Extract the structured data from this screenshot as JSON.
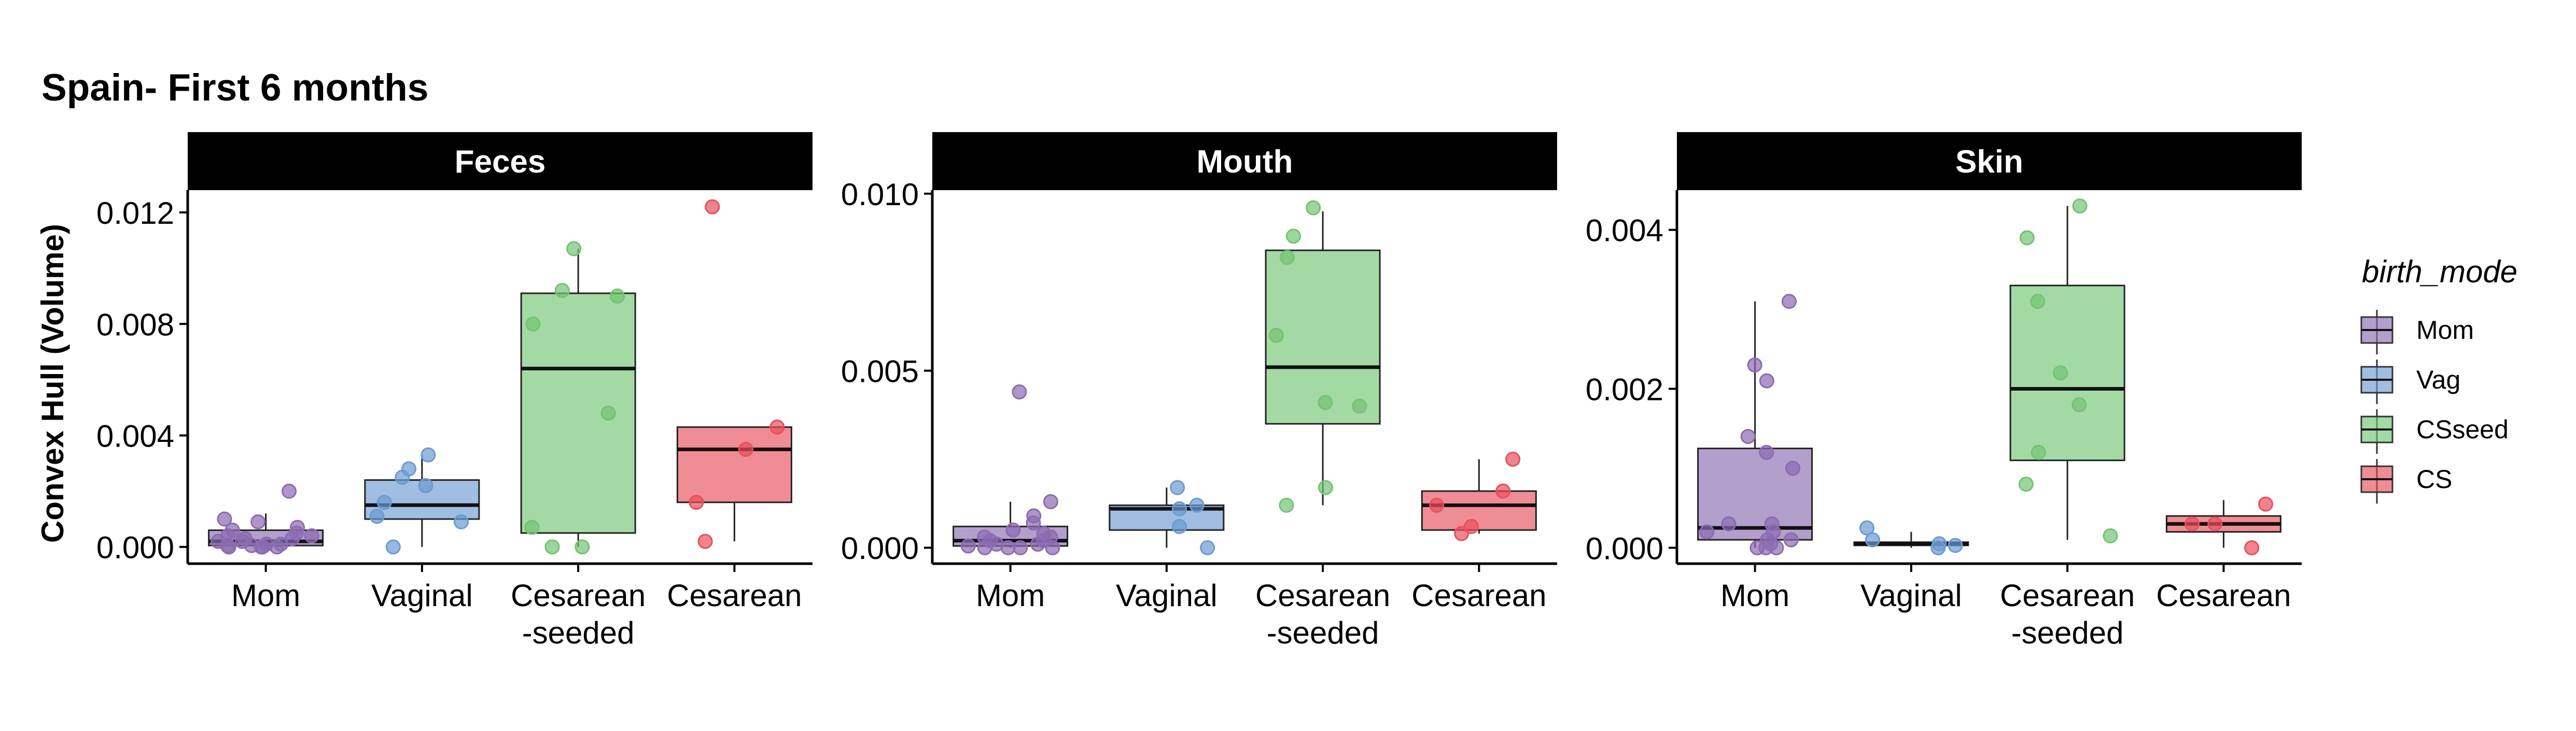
{
  "title": "Spain- First 6 months",
  "ylabel": "Convex Hull (Volume)",
  "legend": {
    "title": "birth_mode",
    "placement": "right",
    "items": [
      {
        "label": "Mom",
        "color": "#8b6bb1"
      },
      {
        "label": "Vag",
        "color": "#6b9bd1"
      },
      {
        "label": "CSseed",
        "color": "#72c472"
      },
      {
        "label": "CS",
        "color": "#e8505b"
      }
    ]
  },
  "x_tick_labels": [
    [
      "Mom"
    ],
    [
      "Vaginal"
    ],
    [
      "Cesarean",
      "-seeded"
    ],
    [
      "Cesarean"
    ]
  ],
  "chart_data": {
    "type": "box",
    "panels": [
      {
        "strip": "Feces",
        "ylim": [
          -0.0006,
          0.0128
        ],
        "yticks": [
          0.0,
          0.004,
          0.008,
          0.012
        ],
        "yticklabels": [
          "0.000",
          "0.004",
          "0.008",
          "0.012"
        ],
        "boxes": [
          {
            "group": "Mom",
            "q1": 5e-05,
            "median": 0.0002,
            "q3": 0.0006,
            "whisker_low": 0.0,
            "whisker_high": 0.0012,
            "points": [
              0.002,
              0.001,
              0.0009,
              0.0007,
              0.0006,
              0.0005,
              0.0004,
              0.0004,
              0.0003,
              0.0003,
              0.0002,
              0.0002,
              0.0001,
              0.0001,
              5e-05,
              5e-05,
              0.0,
              0.0,
              0.0,
              0.0
            ]
          },
          {
            "group": "Vaginal",
            "q1": 0.001,
            "median": 0.0015,
            "q3": 0.0024,
            "whisker_low": 0.0,
            "whisker_high": 0.0033,
            "points": [
              0.0033,
              0.0028,
              0.0025,
              0.0022,
              0.0016,
              0.0011,
              0.0009,
              0.0
            ]
          },
          {
            "group": "Cesarean-seeded",
            "q1": 0.0005,
            "median": 0.0064,
            "q3": 0.0091,
            "whisker_low": 0.0,
            "whisker_high": 0.0107,
            "points": [
              0.0107,
              0.0092,
              0.009,
              0.008,
              0.0048,
              0.0007,
              0.0,
              0.0
            ]
          },
          {
            "group": "Cesarean",
            "q1": 0.0016,
            "median": 0.0035,
            "q3": 0.0043,
            "whisker_low": 0.0002,
            "whisker_high": 0.0043,
            "points": [
              0.0122,
              0.0043,
              0.0035,
              0.0016,
              0.0002
            ]
          }
        ]
      },
      {
        "strip": "Mouth",
        "ylim": [
          -0.00045,
          0.0101
        ],
        "yticks": [
          0.0,
          0.005,
          0.01
        ],
        "yticklabels": [
          "0.000",
          "0.005",
          "0.010"
        ],
        "boxes": [
          {
            "group": "Mom",
            "q1": 5e-05,
            "median": 0.0002,
            "q3": 0.0006,
            "whisker_low": 0.0,
            "whisker_high": 0.0013,
            "points": [
              0.0044,
              0.0013,
              0.0009,
              0.0007,
              0.0005,
              0.0004,
              0.0003,
              0.0003,
              0.0002,
              0.0002,
              0.0001,
              0.0001,
              5e-05,
              0.0,
              0.0,
              0.0,
              0.0
            ]
          },
          {
            "group": "Vaginal",
            "q1": 0.0005,
            "median": 0.0011,
            "q3": 0.0012,
            "whisker_low": 0.0,
            "whisker_high": 0.0017,
            "points": [
              0.0017,
              0.0012,
              0.0011,
              0.0006,
              0.0
            ]
          },
          {
            "group": "Cesarean-seeded",
            "q1": 0.0035,
            "median": 0.0051,
            "q3": 0.0084,
            "whisker_low": 0.0012,
            "whisker_high": 0.0095,
            "points": [
              0.0096,
              0.0088,
              0.0082,
              0.006,
              0.0041,
              0.004,
              0.0017,
              0.0012
            ]
          },
          {
            "group": "Cesarean",
            "q1": 0.0005,
            "median": 0.0012,
            "q3": 0.0016,
            "whisker_low": 0.0004,
            "whisker_high": 0.0025,
            "points": [
              0.0025,
              0.0016,
              0.0012,
              0.0006,
              0.0004
            ]
          }
        ]
      },
      {
        "strip": "Skin",
        "ylim": [
          -0.0002,
          0.0045
        ],
        "yticks": [
          0.0,
          0.002,
          0.004
        ],
        "yticklabels": [
          "0.000",
          "0.002",
          "0.004"
        ],
        "boxes": [
          {
            "group": "Mom",
            "q1": 0.0001,
            "median": 0.00025,
            "q3": 0.00125,
            "whisker_low": 0.0,
            "whisker_high": 0.0031,
            "points": [
              0.0031,
              0.0023,
              0.0021,
              0.0014,
              0.0012,
              0.001,
              0.0003,
              0.0003,
              0.0002,
              0.0002,
              0.0001,
              0.0001,
              5e-05,
              0.0,
              0.0,
              0.0
            ]
          },
          {
            "group": "Vaginal",
            "q1": 3e-05,
            "median": 5e-05,
            "q3": 7e-05,
            "whisker_low": 0.0,
            "whisker_high": 0.0002,
            "points": [
              0.00025,
              0.0001,
              5e-05,
              3e-05,
              0.0
            ]
          },
          {
            "group": "Cesarean-seeded",
            "q1": 0.0011,
            "median": 0.002,
            "q3": 0.0033,
            "whisker_low": 0.0001,
            "whisker_high": 0.0043,
            "points": [
              0.0043,
              0.0039,
              0.0031,
              0.0022,
              0.0018,
              0.0012,
              0.0008,
              0.00015
            ]
          },
          {
            "group": "Cesarean",
            "q1": 0.0002,
            "median": 0.0003,
            "q3": 0.0004,
            "whisker_low": 0.0,
            "whisker_high": 0.0006,
            "points": [
              0.00055,
              0.0003,
              0.0003,
              0.0
            ]
          }
        ]
      }
    ]
  }
}
